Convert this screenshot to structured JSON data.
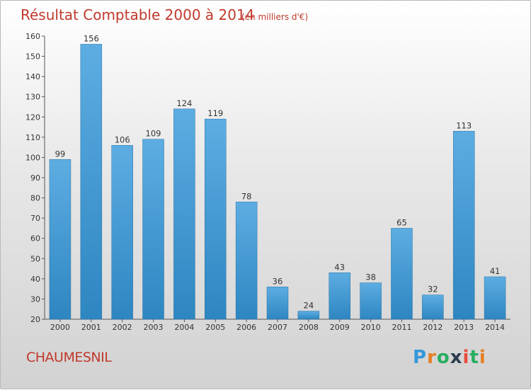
{
  "chart_data": {
    "type": "bar",
    "title": "Résultat Comptable 2000 à 2014",
    "subtitle": "(en milliers d'€)",
    "categories": [
      "2000",
      "2001",
      "2002",
      "2003",
      "2004",
      "2005",
      "2006",
      "2007",
      "2008",
      "2009",
      "2010",
      "2011",
      "2012",
      "2013",
      "2014"
    ],
    "values": [
      99,
      156,
      106,
      109,
      124,
      119,
      78,
      36,
      24,
      43,
      38,
      65,
      32,
      113,
      41
    ],
    "ylim": [
      20,
      160
    ],
    "yticks": [
      20,
      30,
      40,
      50,
      60,
      70,
      80,
      90,
      100,
      110,
      120,
      130,
      140,
      150,
      160
    ],
    "xlabel": "",
    "ylabel": "",
    "grid": false,
    "colors": {
      "bar_light": "#5dade2",
      "bar_dark": "#2e86c1",
      "title": "#c0392b"
    }
  },
  "footer": {
    "place": "CHAUMESNIL",
    "logo_letters": [
      "P",
      "r",
      "o",
      "x",
      "i",
      "t",
      "i"
    ],
    "logo_colors": [
      "#3498db",
      "#e67e22",
      "#27ae60",
      "#2c3e50",
      "#e74c3c",
      "#27ae60",
      "#e67e22"
    ]
  }
}
